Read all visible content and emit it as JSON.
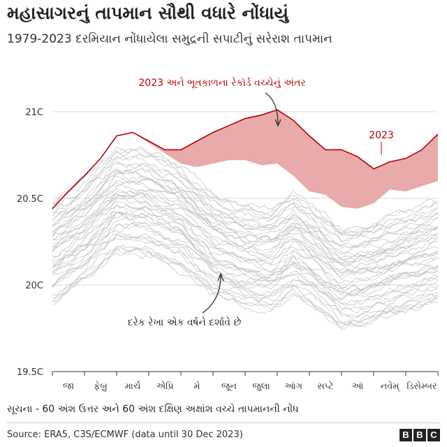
{
  "header": {
    "title": "મહાસાગરનું તાપમાન સૌથી વધારે નોંધાયું",
    "subtitle": "1979-2023 દરમિયાન નોંધાયેલા સમુદ્રની સપાટીનું સરેરાશ તાપમાન"
  },
  "footer": {
    "note": "સૂચના - 60 અંશ ઉત્તર અને 60 અંશ દક્ષિણ અક્ષાંશ વચ્ચે તાપમાનની નોંધ",
    "source": "Source: ERA5, C3S/ECMWF (data until 30 Dec 2023)",
    "logo_letters": [
      "B",
      "B",
      "C"
    ]
  },
  "chart_data": {
    "type": "line",
    "title": "મહાસાગરનું તાપમાન સૌથી વધારે નોંધાયું",
    "xlabel": "",
    "ylabel": "",
    "ylim": [
      19.5,
      21.1
    ],
    "y_ticks": [
      19.5,
      20,
      20.5,
      21
    ],
    "y_tick_labels": [
      "19.5C",
      "20C",
      "20.5C",
      "21C"
    ],
    "months": [
      "જા",
      "ફેબ્રુ",
      "માર્ચ",
      "એપ્રિ",
      "મે",
      "જૂન",
      "જુલા",
      "ઑગ",
      "સપ્ટે",
      "ઑ",
      "નવેમ્",
      "ડિસેમ્બર"
    ],
    "x": [
      0,
      0.5,
      1,
      1.5,
      2,
      2.5,
      3,
      3.5,
      4,
      4.5,
      5,
      5.5,
      6,
      6.5,
      7,
      7.5,
      8,
      8.5,
      9,
      9.5,
      10,
      10.5,
      11,
      11.5,
      12
    ],
    "highlight": {
      "name": "2023",
      "color": "#b80000",
      "values": [
        20.44,
        20.54,
        20.63,
        20.73,
        20.86,
        20.88,
        20.83,
        20.78,
        20.78,
        20.83,
        20.88,
        20.92,
        20.96,
        20.98,
        21.01,
        20.95,
        20.86,
        20.78,
        20.78,
        20.74,
        20.67,
        20.71,
        20.73,
        20.78,
        20.87
      ]
    },
    "record_prior": {
      "color": "#e8aaaa",
      "values": [
        20.44,
        20.54,
        20.63,
        20.73,
        20.86,
        20.88,
        20.82,
        20.76,
        20.7,
        20.68,
        20.7,
        20.72,
        20.72,
        20.69,
        20.7,
        20.63,
        20.54,
        20.52,
        20.45,
        20.44,
        20.47,
        20.55,
        20.54,
        20.57,
        20.6
      ]
    },
    "years_gray": {
      "label": "1979-2022",
      "color": "#bdbdbd",
      "count": 44
    },
    "annotations": {
      "gap": "2023 અને ભૂતકાળના રેકૉર્ડ વચ્ચેનું અંતર",
      "line2023": "2023",
      "each_line": "દરેક રેખા એક વર્ષને દર્શાવે છે"
    }
  }
}
